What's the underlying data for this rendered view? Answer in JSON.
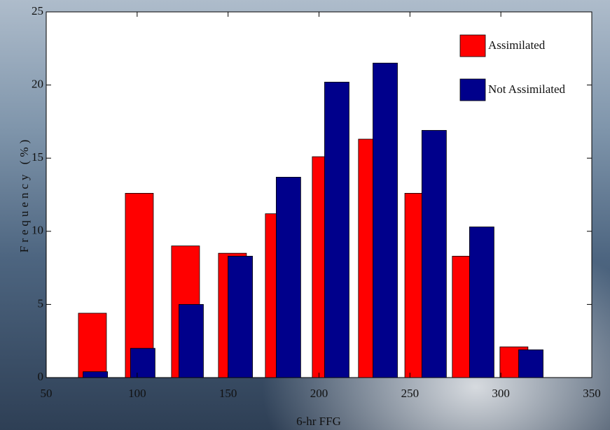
{
  "chart_data": {
    "type": "bar",
    "xlabel": "6-hr FFG",
    "ylabel": "Frequency (%)",
    "xlim": [
      50,
      350
    ],
    "xticks": [
      50,
      100,
      150,
      200,
      250,
      300,
      350
    ],
    "ylim": [
      0,
      25
    ],
    "yticks": [
      0,
      5,
      10,
      15,
      20,
      25
    ],
    "grid": false,
    "legend": "upper right",
    "series": [
      {
        "name": "Assimilated",
        "color": "#ff0000",
        "x": [
          75.4,
          101.2,
          126.6,
          152.4,
          178.2,
          204.0,
          229.4,
          254.9,
          281.0,
          307.2
        ],
        "values": [
          4.4,
          12.6,
          9.0,
          8.5,
          11.2,
          15.1,
          16.3,
          12.6,
          8.3,
          2.1
        ]
      },
      {
        "name": "Not Assimilated",
        "color": "#00008b",
        "x": [
          77.0,
          103.1,
          129.7,
          156.7,
          183.2,
          209.8,
          236.4,
          263.3,
          289.5,
          316.5
        ],
        "values": [
          0.4,
          2.0,
          5.0,
          8.3,
          13.7,
          20.2,
          21.5,
          16.9,
          10.3,
          1.9
        ]
      }
    ]
  }
}
